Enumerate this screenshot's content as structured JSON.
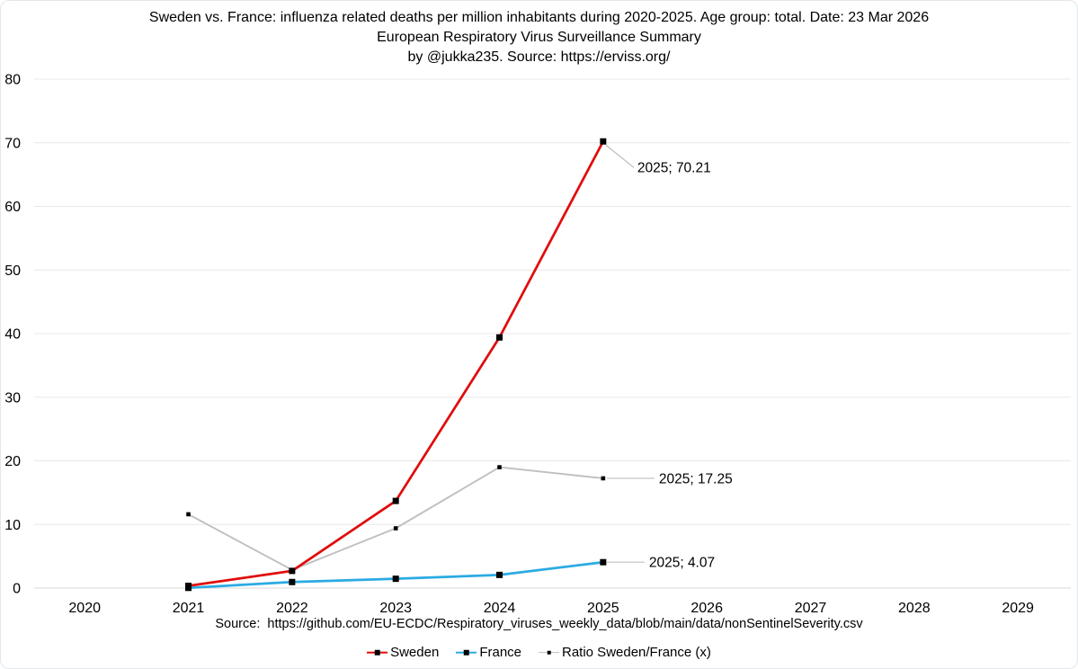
{
  "colors": {
    "background": "#ffffff",
    "card_border": "#e3e7ea",
    "gridline": "#e8e8e8",
    "axis_line": "#d9d9d9",
    "marker": "#000000",
    "leader_line": "#bfbfbf",
    "text": "#000000",
    "sweden_red": "#e00d0d",
    "france_blue": "#2babe2",
    "ratio_gray": "#bfbfbf"
  },
  "chart_data": {
    "type": "line",
    "title_lines": [
      "Sweden vs. France: influenza related deaths per million inhabitants during 2020-2025. Age group: total. Date: 23 Mar 2026",
      "European Respiratory Virus Surveillance Summary",
      "by @jukka235. Source: https://erviss.org/"
    ],
    "source_note": "Source:  https://github.com/EU-ECDC/Respiratory_viruses_weekly_data/blob/main/data/nonSentinelSeverity.csv",
    "x_axis_ticks": [
      2020,
      2021,
      2022,
      2023,
      2024,
      2025,
      2026,
      2027,
      2028,
      2029
    ],
    "y_ticks": [
      0,
      10,
      20,
      30,
      40,
      50,
      60,
      70,
      80
    ],
    "ylim": [
      0,
      80
    ],
    "grid": true,
    "legend_position": "bottom",
    "x": [
      2021,
      2022,
      2023,
      2024,
      2025
    ],
    "series": [
      {
        "name": "Sweden",
        "color": "#e00d0d",
        "marker": "square",
        "marker_size": "large",
        "values": [
          0.35,
          2.7,
          13.7,
          39.4,
          70.21
        ]
      },
      {
        "name": "France",
        "color": "#2babe2",
        "marker": "square",
        "marker_size": "large",
        "values": [
          0.03,
          0.95,
          1.46,
          2.07,
          4.07
        ]
      },
      {
        "name": "Ratio Sweden/France (x)",
        "color": "#bfbfbf",
        "marker": "square",
        "marker_size": "small",
        "values": [
          11.6,
          2.85,
          9.4,
          19,
          17.25
        ]
      }
    ],
    "data_labels": [
      {
        "series": "Sweden",
        "year": 2025,
        "text": "2025; 70.21",
        "placement": "diagonal"
      },
      {
        "series": "Ratio Sweden/France (x)",
        "year": 2025,
        "text": "2025; 17.25",
        "placement": "right",
        "leader_len": 57
      },
      {
        "series": "France",
        "year": 2025,
        "text": "2025; 4.07",
        "placement": "right",
        "leader_len": 46
      }
    ]
  }
}
